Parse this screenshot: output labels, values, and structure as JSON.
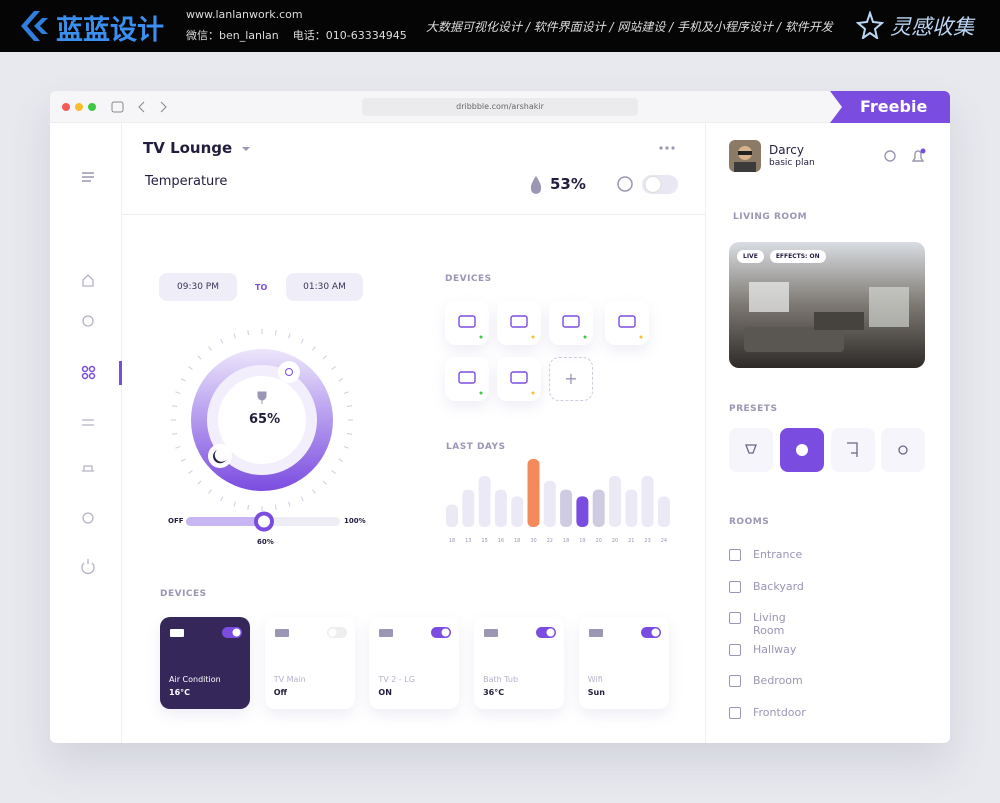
{
  "banner": {
    "brand": "蓝蓝设计",
    "url": "www.lanlanwork.com",
    "contact": "微信：ben_lanlan    电话：010-63334945",
    "services": "大数据可视化设计 / 软件界面设计 / 网站建设 / 手机及小程序设计 / 软件开发",
    "tagline": "灵感收集"
  },
  "browser": {
    "url": "dribbble.com/arshakir",
    "badge": "Freebie"
  },
  "header": {
    "room": "TV Lounge",
    "label": "Temperature",
    "humidity": "53%"
  },
  "schedule": {
    "from": "09:30 PM",
    "separator": "TO",
    "to": "01:30 AM"
  },
  "dial": {
    "value": "65%"
  },
  "slider": {
    "min": "OFF",
    "max": "100%",
    "value": "60%"
  },
  "devices_panel": {
    "title": "DEVICES"
  },
  "last_days": {
    "title": "LAST DAYS",
    "labels": [
      "18",
      "13",
      "15",
      "16",
      "18",
      "30",
      "22",
      "18",
      "19",
      "20",
      "20",
      "21",
      "23",
      "24"
    ],
    "values": [
      33,
      55,
      75,
      55,
      45,
      100,
      68,
      55,
      45,
      55,
      75,
      55,
      75,
      45
    ],
    "colors": [
      "#ece9f7",
      "#ece9f7",
      "#ece9f7",
      "#ece9f7",
      "#ece9f7",
      "#f4895c",
      "#ece9f7",
      "#cfcbe0",
      "#7b4ce0",
      "#cfcbe0",
      "#ece9f7",
      "#ece9f7",
      "#ece9f7",
      "#ece9f7"
    ]
  },
  "devices": {
    "title": "DEVICES",
    "cards": [
      {
        "name": "Air Condition",
        "state": "16°C"
      },
      {
        "name": "TV Main",
        "state": "Off"
      },
      {
        "name": "TV 2 - LG",
        "state": "ON"
      },
      {
        "name": "Bath Tub",
        "state": "36°C"
      },
      {
        "name": "Wifi",
        "state": "Sun"
      }
    ]
  },
  "profile": {
    "name": "Darcy",
    "plan": "basic plan"
  },
  "living_room": {
    "title": "LIVING ROOM",
    "tags": [
      "LIVE",
      "EFFECTS: ON"
    ]
  },
  "presets": {
    "title": "PRESETS"
  },
  "rooms": {
    "title": "ROOMS",
    "items": [
      "Entrance",
      "Backyard",
      "Living Room",
      "Hallway",
      "Bedroom",
      "Frontdoor"
    ]
  }
}
